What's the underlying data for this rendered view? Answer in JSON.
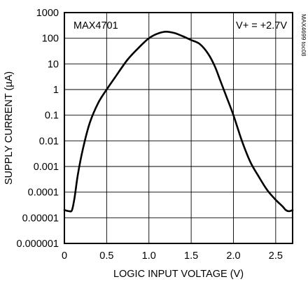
{
  "chart_data": {
    "type": "line",
    "title": "MAX4701",
    "annotation": "V+ = +2.7V",
    "side_label": "MAX4699 toc08",
    "xlabel": "LOGIC INPUT VOLTAGE (V)",
    "ylabel": "SUPPLY CURRENT (µA)",
    "xlim": [
      0,
      2.7
    ],
    "ylim": [
      1e-06,
      1000
    ],
    "yscale": "log",
    "grid": true,
    "x_ticks": [
      0,
      0.5,
      1.0,
      1.5,
      2.0,
      2.5
    ],
    "x_tick_labels": [
      "0",
      "0.5",
      "1.0",
      "1.5",
      "2.0",
      "2.5"
    ],
    "y_ticks": [
      1e-06,
      1e-05,
      0.0001,
      0.001,
      0.01,
      0.1,
      1,
      10,
      100,
      1000
    ],
    "y_tick_labels": [
      "0.000001",
      "0.00001",
      "0.0001",
      "0.001",
      "0.01",
      "0.1",
      "1",
      "10",
      "100",
      "1000"
    ],
    "x_grid": [
      0,
      0.5,
      1.0,
      1.5,
      2.0,
      2.5
    ],
    "series": [
      {
        "name": "",
        "x": [
          0.0,
          0.06,
          0.09,
          0.12,
          0.16,
          0.22,
          0.3,
          0.4,
          0.5,
          0.6,
          0.75,
          0.9,
          1.0,
          1.1,
          1.2,
          1.3,
          1.4,
          1.5,
          1.6,
          1.7,
          1.78,
          1.85,
          1.92,
          2.0,
          2.1,
          2.2,
          2.3,
          2.4,
          2.5,
          2.58,
          2.62,
          2.66,
          2.7
        ],
        "y": [
          2e-05,
          1.8e-05,
          2e-05,
          6e-05,
          0.0005,
          0.005,
          0.05,
          0.3,
          1,
          3,
          15,
          50,
          100,
          150,
          180,
          160,
          120,
          85,
          60,
          25,
          8,
          2,
          0.5,
          0.1,
          0.01,
          0.0015,
          0.0004,
          0.00012,
          5e-05,
          2.8e-05,
          2e-05,
          1.8e-05,
          2e-05
        ]
      }
    ]
  }
}
